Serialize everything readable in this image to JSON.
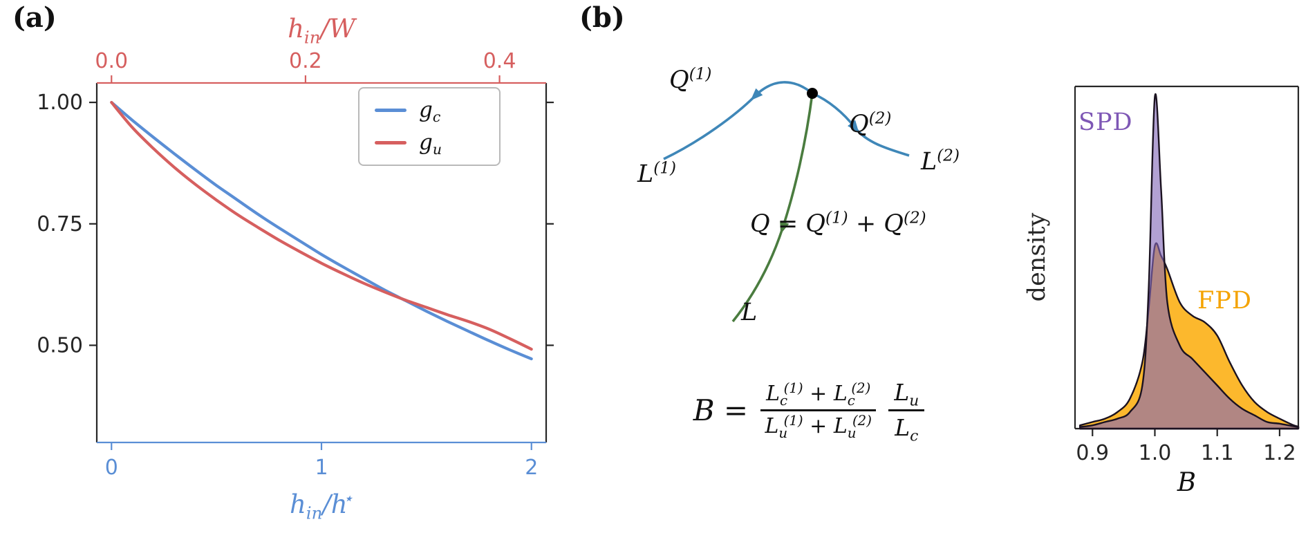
{
  "figure": {
    "panel_a_label": "(a)",
    "panel_b_label": "(b)"
  },
  "panel_b": {
    "diagram": {
      "labels": {
        "q1": "Q^{(1)}",
        "q2": "Q^{(2)}",
        "l1": "L^{(1)}",
        "l2": "L^{(2)}",
        "q_sum": "Q = Q^{(1)} + Q^{(2)}",
        "l": "L"
      },
      "colors": {
        "branch": "#3f87b8",
        "trunk": "#4a7c3f",
        "node": "#000000"
      }
    },
    "equation": {
      "lhs": "B =",
      "frac1_num": "L_{c}^{(1)} + L_{c}^{(2)}",
      "frac1_den": "L_{u}^{(1)} + L_{u}^{(2)}",
      "frac2_num": "L_{u}",
      "frac2_den": "L_{c}"
    },
    "density_annotations": {
      "spd": {
        "text": "SPD",
        "color": "#7e57b5"
      },
      "fpd": {
        "text": "FPD",
        "color": "#f4a300"
      }
    }
  },
  "chart_data": [
    {
      "type": "line",
      "title": "",
      "xlabel_bottom": "h_{in}/h^{⋆}",
      "xlabel_top": "h_{in}/W",
      "ylabel": "",
      "xlim": [
        -0.07,
        2.07
      ],
      "ylim": [
        0.3,
        1.04
      ],
      "grid": false,
      "legend_position": "upper right",
      "x": [
        0,
        0.1,
        0.2,
        0.3,
        0.4,
        0.5,
        0.6,
        0.7,
        0.8,
        0.9,
        1,
        1.1,
        1.2,
        1.3,
        1.4,
        1.5,
        1.6,
        1.7,
        1.8,
        1.9,
        2
      ],
      "series": [
        {
          "name": "g_{c}",
          "color": "#5a8ed5",
          "values": [
            1,
            0.963,
            0.928,
            0.894,
            0.861,
            0.829,
            0.799,
            0.769,
            0.741,
            0.714,
            0.687,
            0.662,
            0.638,
            0.614,
            0.592,
            0.57,
            0.549,
            0.529,
            0.509,
            0.49,
            0.472
          ]
        },
        {
          "name": "g_{u}",
          "color": "#d65f5f",
          "values": [
            1,
            0.948,
            0.905,
            0.866,
            0.831,
            0.799,
            0.769,
            0.742,
            0.716,
            0.692,
            0.669,
            0.648,
            0.628,
            0.61,
            0.593,
            0.578,
            0.563,
            0.549,
            0.533,
            0.513,
            0.492
          ]
        }
      ],
      "xticks_bottom": {
        "labels": [
          "0",
          "1",
          "2"
        ],
        "values": [
          0,
          1,
          2
        ],
        "color": "#5a8ed5"
      },
      "xticks_top": {
        "labels": [
          "0.0",
          "0.2",
          "0.4"
        ],
        "values_in_bottom_units": [
          0,
          0.924,
          1.848
        ],
        "color": "#d65f5f"
      },
      "yticks": {
        "labels": [
          "1.00",
          "0.75",
          "0.50"
        ],
        "values": [
          1.0,
          0.75,
          0.5
        ]
      }
    },
    {
      "type": "area",
      "title": "",
      "xlabel": "B",
      "ylabel": "density",
      "xlim": [
        0.872,
        1.23
      ],
      "ylim": [
        0,
        1.03
      ],
      "grid": false,
      "x": [
        0.88,
        0.9,
        0.92,
        0.94,
        0.96,
        0.98,
        0.99,
        1,
        1.01,
        1.02,
        1.04,
        1.06,
        1.08,
        1.1,
        1.12,
        1.14,
        1.16,
        1.18,
        1.2,
        1.22,
        1.23
      ],
      "series": [
        {
          "name": "FPD",
          "color": "#fcae10",
          "fill_opacity": 0.88,
          "outline": "#1b1220",
          "values": [
            0.01,
            0.02,
            0.03,
            0.05,
            0.09,
            0.2,
            0.36,
            0.55,
            0.52,
            0.48,
            0.38,
            0.34,
            0.32,
            0.28,
            0.2,
            0.13,
            0.08,
            0.05,
            0.03,
            0.012,
            0.006
          ]
        },
        {
          "name": "SPD",
          "color": "#8367b8",
          "fill_opacity": 0.62,
          "outline": "#1b1220",
          "values": [
            0.005,
            0.01,
            0.02,
            0.03,
            0.05,
            0.13,
            0.42,
            1,
            0.72,
            0.38,
            0.25,
            0.21,
            0.17,
            0.13,
            0.09,
            0.06,
            0.04,
            0.02,
            0.015,
            0.008,
            0.005
          ]
        }
      ],
      "xticks": {
        "labels": [
          "0.9",
          "1.0",
          "1.1",
          "1.2"
        ],
        "values": [
          0.9,
          1.0,
          1.1,
          1.2
        ]
      }
    }
  ]
}
